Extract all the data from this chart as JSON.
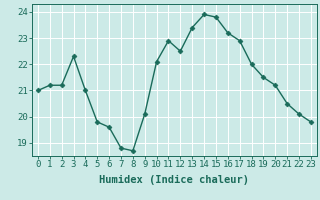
{
  "x": [
    0,
    1,
    2,
    3,
    4,
    5,
    6,
    7,
    8,
    9,
    10,
    11,
    12,
    13,
    14,
    15,
    16,
    17,
    18,
    19,
    20,
    21,
    22,
    23
  ],
  "y": [
    21.0,
    21.2,
    21.2,
    22.3,
    21.0,
    19.8,
    19.6,
    18.8,
    18.7,
    20.1,
    22.1,
    22.9,
    22.5,
    23.4,
    23.9,
    23.8,
    23.2,
    22.9,
    22.0,
    21.5,
    21.2,
    20.5,
    20.1,
    19.8
  ],
  "line_color": "#1a6b5a",
  "marker": "D",
  "markersize": 2.5,
  "bg_color": "#cceae7",
  "grid_color": "#ffffff",
  "xlabel": "Humidex (Indice chaleur)",
  "ylim": [
    18.5,
    24.3
  ],
  "xlim": [
    -0.5,
    23.5
  ],
  "yticks": [
    19,
    20,
    21,
    22,
    23,
    24
  ],
  "xticks": [
    0,
    1,
    2,
    3,
    4,
    5,
    6,
    7,
    8,
    9,
    10,
    11,
    12,
    13,
    14,
    15,
    16,
    17,
    18,
    19,
    20,
    21,
    22,
    23
  ],
  "xlabel_fontsize": 7.5,
  "tick_fontsize": 6.5,
  "linewidth": 1.0
}
